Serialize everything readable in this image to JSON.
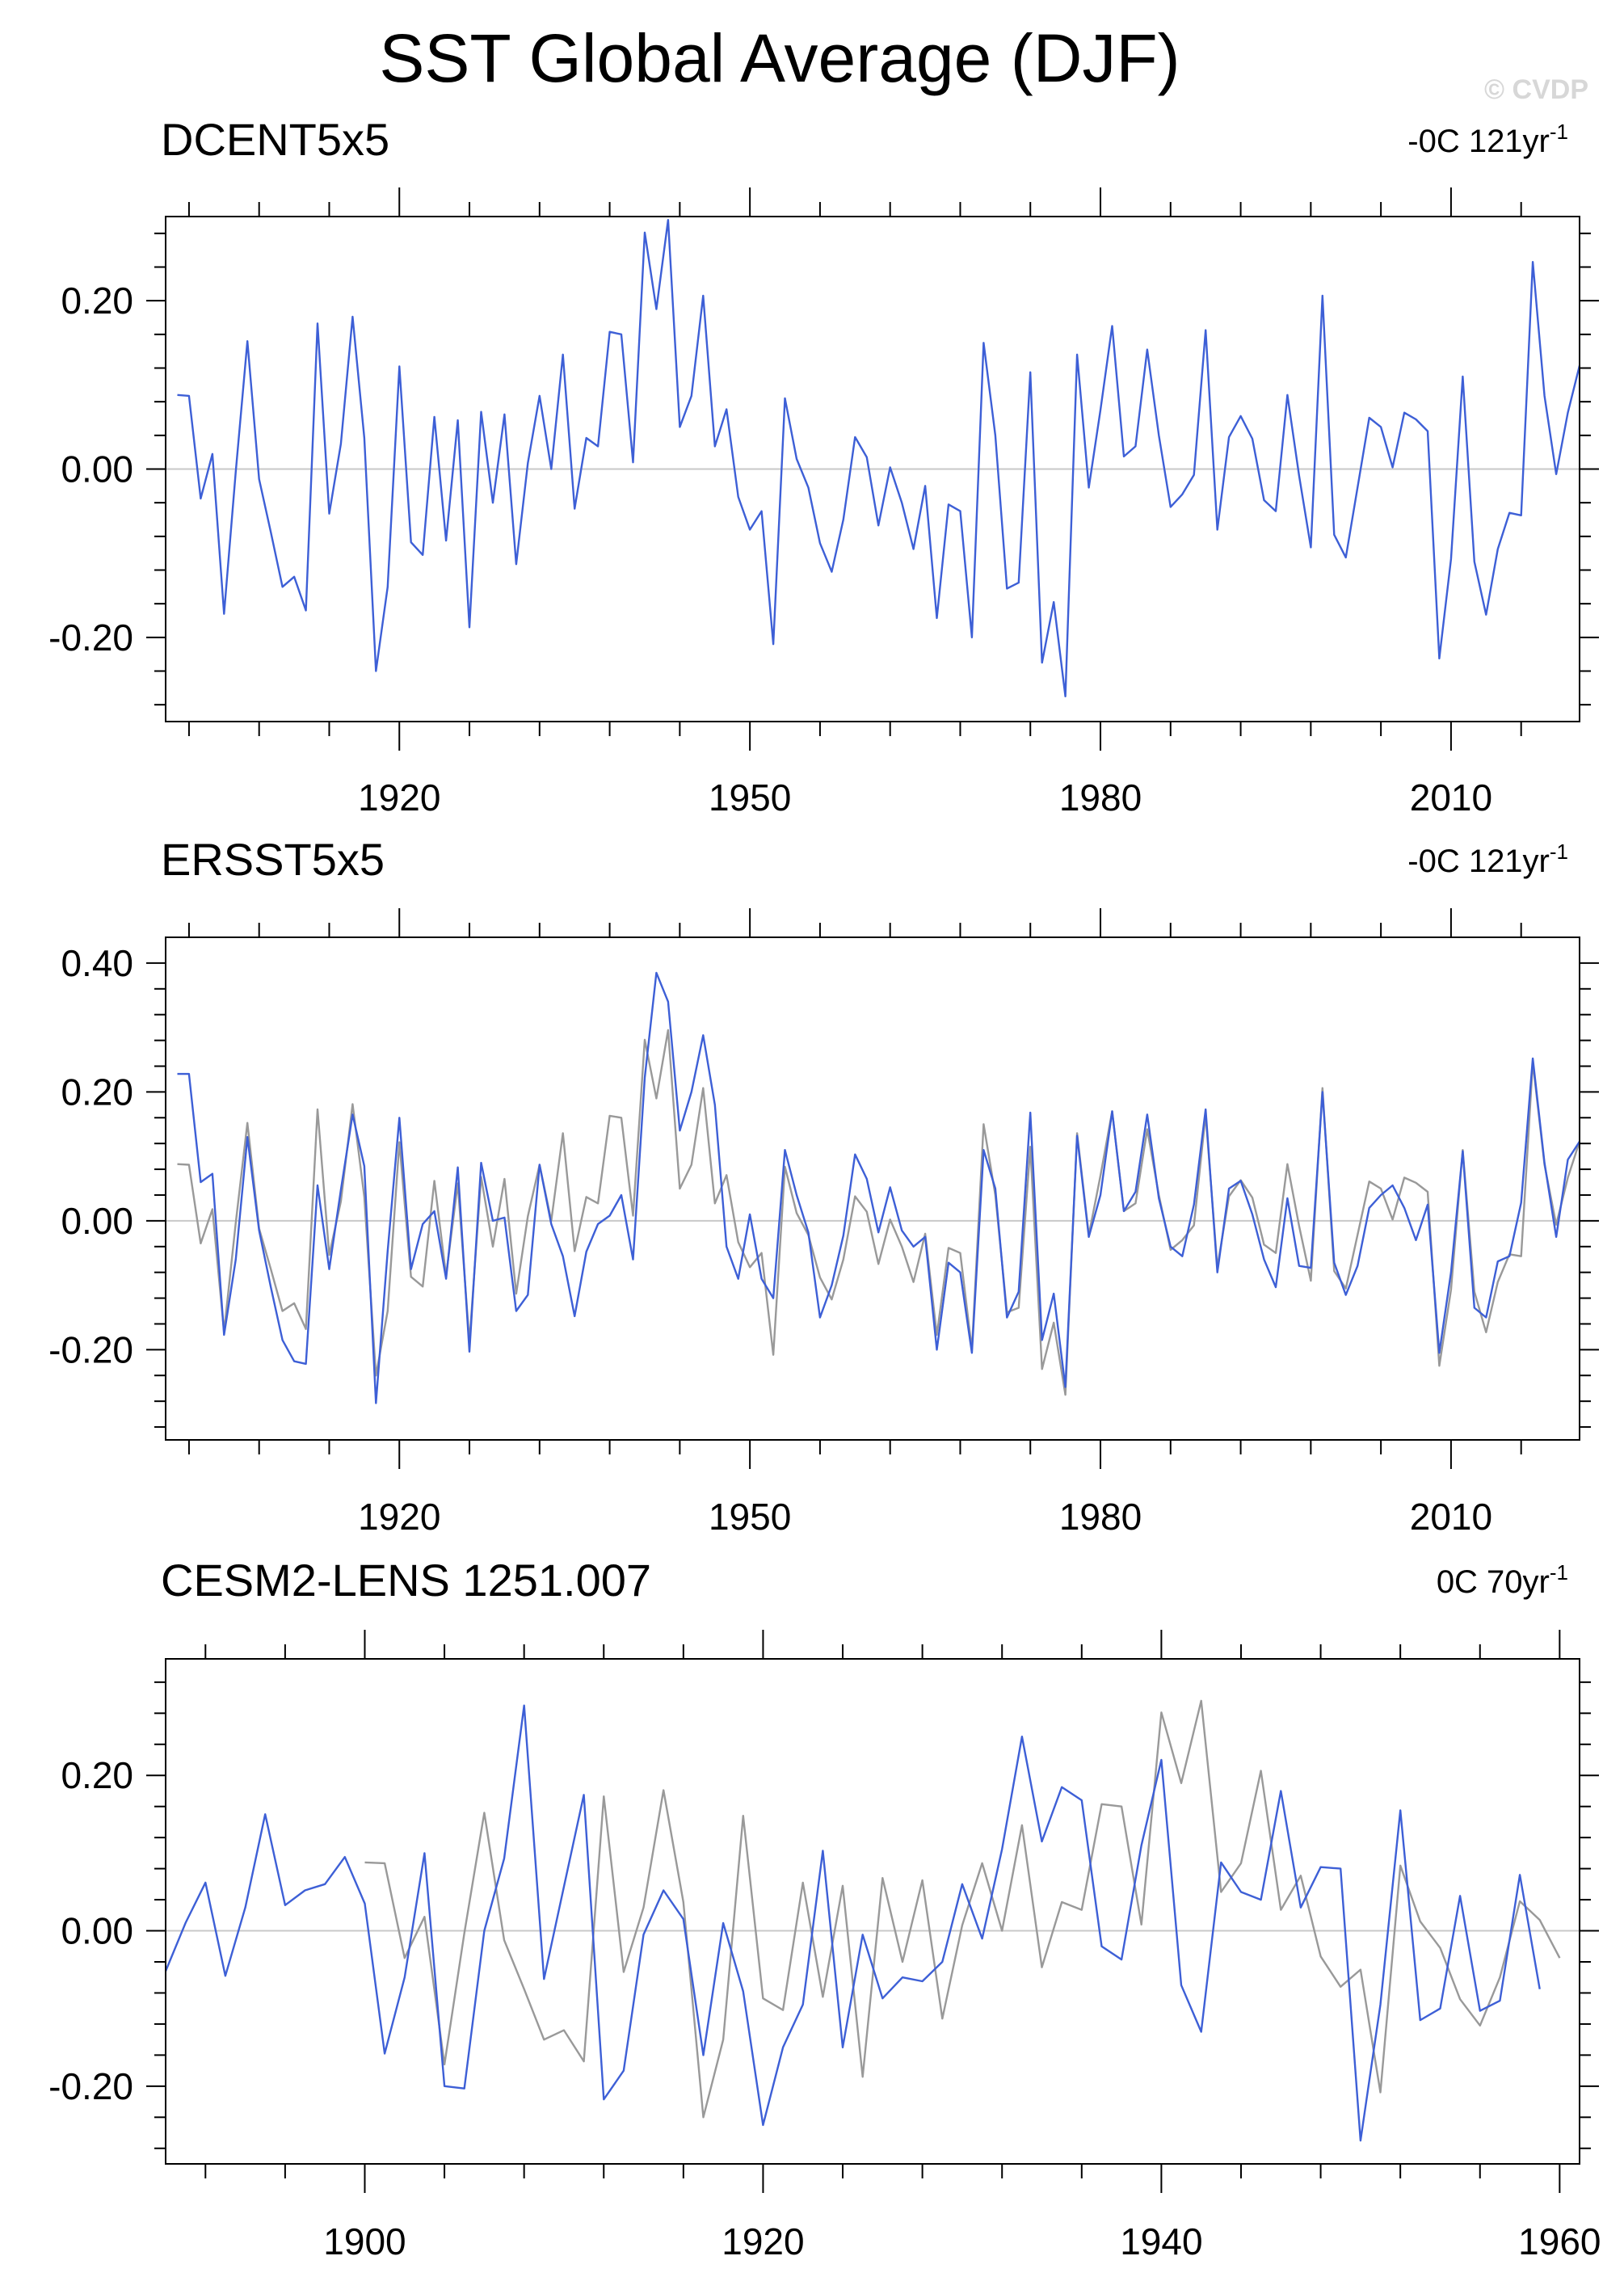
{
  "title": "SST Global Average (DJF)",
  "watermark": "© CVDP",
  "colors": {
    "obs": "#3d5fd6",
    "reference": "#999999",
    "axis": "#000000",
    "zero_line": "#c8c8c8"
  },
  "chart_data": [
    {
      "type": "line",
      "panel_label": "DCENT5x5",
      "trend_label": "-0C 121yr",
      "trend_superscript": "-1",
      "xlim": [
        1900,
        2021
      ],
      "ylim": [
        -0.3,
        0.3
      ],
      "x_ticks": [
        1920,
        1950,
        1980,
        2010
      ],
      "x_tick_labels": [
        "1920",
        "1950",
        "1980",
        "2010"
      ],
      "y_ticks": [
        0.2,
        0.0,
        -0.2
      ],
      "y_tick_labels": [
        "0.20",
        "0.00",
        "-0.20"
      ],
      "grid": false,
      "zero_line": true,
      "series": [
        {
          "color": "#3d5fd6",
          "x_start": 1901,
          "values": [
            0.088,
            0.087,
            -0.035,
            0.018,
            -0.172,
            -0.003,
            0.152,
            -0.012,
            -0.075,
            -0.14,
            -0.128,
            -0.168,
            0.173,
            -0.053,
            0.03,
            0.181,
            0.037,
            -0.24,
            -0.14,
            0.122,
            -0.087,
            -0.102,
            0.062,
            -0.085,
            0.058,
            -0.188,
            0.068,
            -0.04,
            0.065,
            -0.113,
            0.007,
            0.087,
            0.0,
            0.136,
            -0.047,
            0.037,
            0.027,
            0.163,
            0.16,
            0.008,
            0.281,
            0.19,
            0.296,
            0.05,
            0.087,
            0.206,
            0.027,
            0.071,
            -0.033,
            -0.072,
            -0.05,
            -0.208,
            0.084,
            0.012,
            -0.022,
            -0.088,
            -0.122,
            -0.06,
            0.038,
            0.014,
            -0.067,
            0.002,
            -0.04,
            -0.095,
            -0.02,
            -0.177,
            -0.042,
            -0.05,
            -0.2,
            0.15,
            0.04,
            -0.142,
            -0.135,
            0.115,
            -0.23,
            -0.158,
            -0.27,
            0.136,
            -0.022,
            0.07,
            0.17,
            0.015,
            0.027,
            0.142,
            0.04,
            -0.045,
            -0.03,
            -0.007,
            0.165,
            -0.072,
            0.038,
            0.063,
            0.036,
            -0.037,
            -0.05,
            0.088,
            -0.008,
            -0.093,
            0.206,
            -0.078,
            -0.105,
            -0.022,
            0.061,
            0.05,
            0.002,
            0.067,
            0.059,
            0.045,
            -0.225,
            -0.107,
            0.11,
            -0.11,
            -0.173,
            -0.095,
            -0.052,
            -0.055,
            0.246,
            0.087,
            -0.006,
            0.067,
            0.123
          ]
        }
      ]
    },
    {
      "type": "line",
      "panel_label": "ERSST5x5",
      "trend_label": "-0C 121yr",
      "trend_superscript": "-1",
      "xlim": [
        1900,
        2021
      ],
      "ylim": [
        -0.34,
        0.44
      ],
      "x_ticks": [
        1920,
        1950,
        1980,
        2010
      ],
      "x_tick_labels": [
        "1920",
        "1950",
        "1980",
        "2010"
      ],
      "y_ticks": [
        0.4,
        0.2,
        0.0,
        -0.2
      ],
      "y_tick_labels": [
        "0.40",
        "0.20",
        "0.00",
        "-0.20"
      ],
      "grid": false,
      "zero_line": true,
      "series": [
        {
          "color": "#999999",
          "x_start": 1901,
          "values": [
            0.088,
            0.087,
            -0.035,
            0.018,
            -0.172,
            -0.003,
            0.152,
            -0.012,
            -0.075,
            -0.14,
            -0.128,
            -0.168,
            0.173,
            -0.053,
            0.03,
            0.181,
            0.037,
            -0.24,
            -0.14,
            0.122,
            -0.087,
            -0.102,
            0.062,
            -0.085,
            0.058,
            -0.188,
            0.068,
            -0.04,
            0.065,
            -0.113,
            0.007,
            0.087,
            0.0,
            0.136,
            -0.047,
            0.037,
            0.027,
            0.163,
            0.16,
            0.008,
            0.281,
            0.19,
            0.296,
            0.05,
            0.087,
            0.206,
            0.027,
            0.071,
            -0.033,
            -0.072,
            -0.05,
            -0.208,
            0.084,
            0.012,
            -0.022,
            -0.088,
            -0.122,
            -0.06,
            0.038,
            0.014,
            -0.067,
            0.002,
            -0.04,
            -0.095,
            -0.02,
            -0.177,
            -0.042,
            -0.05,
            -0.2,
            0.15,
            0.04,
            -0.142,
            -0.135,
            0.115,
            -0.23,
            -0.158,
            -0.27,
            0.136,
            -0.022,
            0.07,
            0.17,
            0.015,
            0.027,
            0.142,
            0.04,
            -0.045,
            -0.03,
            -0.007,
            0.165,
            -0.072,
            0.038,
            0.063,
            0.036,
            -0.037,
            -0.05,
            0.088,
            -0.008,
            -0.093,
            0.206,
            -0.078,
            -0.105,
            -0.022,
            0.061,
            0.05,
            0.002,
            0.067,
            0.059,
            0.045,
            -0.225,
            -0.107,
            0.11,
            -0.11,
            -0.173,
            -0.095,
            -0.052,
            -0.055,
            0.246,
            0.087,
            -0.006,
            0.067,
            0.123
          ]
        },
        {
          "color": "#3d5fd6",
          "x_start": 1901,
          "values": [
            0.228,
            0.228,
            0.06,
            0.073,
            -0.177,
            -0.06,
            0.13,
            -0.015,
            -0.103,
            -0.185,
            -0.218,
            -0.222,
            0.055,
            -0.075,
            0.048,
            0.165,
            0.085,
            -0.283,
            -0.047,
            0.16,
            -0.075,
            -0.005,
            0.015,
            -0.09,
            0.083,
            -0.203,
            0.09,
            0.0,
            0.005,
            -0.14,
            -0.115,
            0.087,
            -0.005,
            -0.055,
            -0.148,
            -0.048,
            -0.005,
            0.008,
            0.04,
            -0.06,
            0.222,
            0.385,
            0.34,
            0.14,
            0.2,
            0.288,
            0.18,
            -0.04,
            -0.09,
            0.01,
            -0.09,
            -0.12,
            0.11,
            0.04,
            -0.018,
            -0.15,
            -0.1,
            -0.023,
            0.103,
            0.065,
            -0.018,
            0.052,
            -0.015,
            -0.04,
            -0.025,
            -0.2,
            -0.065,
            -0.08,
            -0.205,
            0.11,
            0.05,
            -0.15,
            -0.11,
            0.168,
            -0.185,
            -0.113,
            -0.258,
            0.132,
            -0.025,
            0.04,
            0.17,
            0.015,
            0.045,
            0.165,
            0.035,
            -0.04,
            -0.055,
            0.025,
            0.173,
            -0.08,
            0.05,
            0.062,
            0.01,
            -0.06,
            -0.103,
            0.035,
            -0.07,
            -0.073,
            0.2,
            -0.065,
            -0.115,
            -0.07,
            0.02,
            0.04,
            0.055,
            0.02,
            -0.03,
            0.025,
            -0.205,
            -0.08,
            0.108,
            -0.135,
            -0.15,
            -0.063,
            -0.055,
            0.028,
            0.252,
            0.09,
            -0.025,
            0.095,
            0.123
          ]
        }
      ]
    },
    {
      "type": "line",
      "panel_label": "CESM2-LENS 1251.007",
      "trend_label": "0C 70yr",
      "trend_superscript": "-1",
      "xlim": [
        1890,
        1961
      ],
      "ylim": [
        -0.3,
        0.35
      ],
      "x_ticks": [
        1900,
        1920,
        1940,
        1960
      ],
      "x_tick_labels": [
        "1900",
        "1920",
        "1940",
        "1960"
      ],
      "y_ticks": [
        0.2,
        0.0,
        -0.2
      ],
      "y_tick_labels": [
        "0.20",
        "0.00",
        "-0.20"
      ],
      "grid": false,
      "zero_line": true,
      "series": [
        {
          "color": "#999999",
          "x_start": 1900,
          "values": [
            0.088,
            0.087,
            -0.035,
            0.018,
            -0.172,
            -0.003,
            0.152,
            -0.012,
            -0.075,
            -0.14,
            -0.128,
            -0.168,
            0.173,
            -0.053,
            0.03,
            0.181,
            0.037,
            -0.24,
            -0.14,
            0.148,
            -0.087,
            -0.102,
            0.062,
            -0.085,
            0.058,
            -0.188,
            0.068,
            -0.04,
            0.065,
            -0.113,
            0.007,
            0.087,
            0.0,
            0.136,
            -0.047,
            0.037,
            0.027,
            0.163,
            0.16,
            0.008,
            0.281,
            0.19,
            0.296,
            0.05,
            0.087,
            0.206,
            0.027,
            0.071,
            -0.033,
            -0.072,
            -0.05,
            -0.208,
            0.084,
            0.012,
            -0.022,
            -0.088,
            -0.122,
            -0.06,
            0.038,
            0.014,
            -0.035
          ]
        },
        {
          "color": "#3d5fd6",
          "x_start": 1890,
          "values": [
            -0.052,
            0.01,
            0.062,
            -0.058,
            0.03,
            0.15,
            0.033,
            0.052,
            0.06,
            0.095,
            0.035,
            -0.158,
            -0.06,
            0.1,
            -0.2,
            -0.203,
            0.0,
            0.093,
            0.29,
            -0.062,
            0.057,
            0.175,
            -0.217,
            -0.18,
            -0.005,
            0.052,
            0.015,
            -0.16,
            0.01,
            -0.078,
            -0.25,
            -0.15,
            -0.095,
            0.103,
            -0.15,
            -0.005,
            -0.087,
            -0.06,
            -0.065,
            -0.04,
            0.06,
            -0.01,
            0.105,
            0.25,
            0.115,
            0.185,
            0.168,
            -0.02,
            -0.037,
            0.11,
            0.22,
            -0.07,
            -0.13,
            0.088,
            0.05,
            0.04,
            0.18,
            0.03,
            0.082,
            0.08,
            -0.27,
            -0.095,
            0.155,
            -0.115,
            -0.1,
            0.045,
            -0.103,
            -0.09,
            0.072,
            -0.075
          ]
        }
      ]
    }
  ]
}
